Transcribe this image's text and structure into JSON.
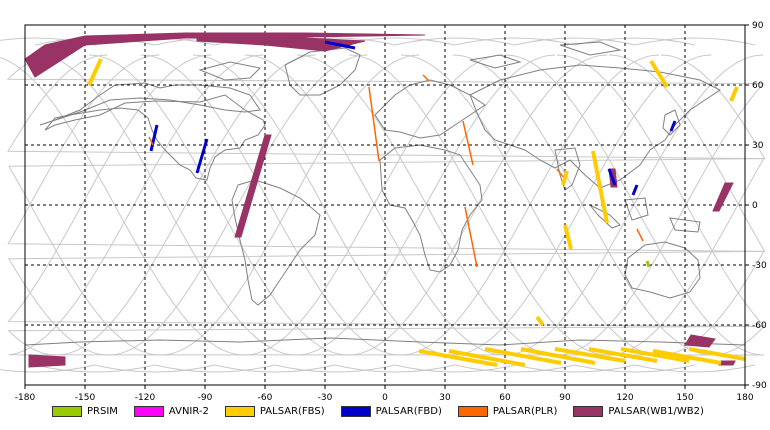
{
  "map": {
    "lon_range": [
      -180,
      180
    ],
    "lat_range": [
      -90,
      90
    ],
    "x_ticks": [
      -180,
      -150,
      -120,
      -90,
      -60,
      -30,
      0,
      30,
      60,
      90,
      120,
      150,
      180
    ],
    "y_ticks": [
      90,
      60,
      30,
      0,
      -30,
      -60,
      -90
    ],
    "x_tick_labels": [
      "-180",
      "-150",
      "-120",
      "-90",
      "-60",
      "-30",
      "0",
      "30",
      "60",
      "90",
      "120",
      "150",
      "180"
    ],
    "y_tick_labels": [
      "90",
      "60",
      "30",
      "0",
      "-30",
      "-60",
      "-90"
    ],
    "grid": "dashed",
    "land_color": "#808080",
    "orbit_color": "#c8c8c8"
  },
  "legend": [
    {
      "label": "PRSIM",
      "color": "#99cc00"
    },
    {
      "label": "AVNIR-2",
      "color": "#ff00ff"
    },
    {
      "label": "PALSAR(FBS)",
      "color": "#ffcc00"
    },
    {
      "label": "PALSAR(FBD)",
      "color": "#0000cc"
    },
    {
      "label": "PALSAR(PLR)",
      "color": "#ff6600"
    },
    {
      "label": "PALSAR(WB1/WB2)",
      "color": "#993366"
    }
  ],
  "swaths": {
    "wb": [
      {
        "poly": [
          [
            -180,
            73
          ],
          [
            -170,
            80
          ],
          [
            -150,
            84.5
          ],
          [
            -100,
            86
          ],
          [
            -40,
            86
          ],
          [
            20,
            85
          ],
          [
            -40,
            84
          ],
          [
            -100,
            83.5
          ],
          [
            -150,
            80
          ],
          [
            -175,
            64
          ]
        ]
      },
      {
        "poly": [
          [
            -94,
            84
          ],
          [
            -50,
            84
          ],
          [
            -10,
            82
          ],
          [
            -30,
            77
          ],
          [
            -60,
            80
          ],
          [
            -94,
            82
          ]
        ]
      },
      {
        "poly": [
          [
            -60,
            35
          ],
          [
            -57,
            35
          ],
          [
            -72,
            -16
          ],
          [
            -75,
            -16
          ]
        ]
      },
      {
        "poly": [
          [
            -178,
            -75
          ],
          [
            -160,
            -76
          ],
          [
            -160,
            -80
          ],
          [
            -178,
            -81
          ]
        ]
      },
      {
        "poly": [
          [
            112,
            18
          ],
          [
            115,
            18
          ],
          [
            116,
            9
          ],
          [
            113,
            9
          ]
        ]
      },
      {
        "poly": [
          [
            170,
            11
          ],
          [
            174,
            11
          ],
          [
            167,
            -3
          ],
          [
            164,
            -3
          ]
        ]
      },
      {
        "poly": [
          [
            153,
            -65
          ],
          [
            165,
            -67
          ],
          [
            162,
            -71
          ],
          [
            150,
            -70
          ]
        ]
      },
      {
        "poly": [
          [
            168,
            -78
          ],
          [
            175,
            -78
          ],
          [
            174,
            -80
          ],
          [
            167,
            -80
          ]
        ]
      }
    ],
    "fbd": [
      {
        "line": [
          [
            -30,
            81.5
          ],
          [
            -15,
            78.5
          ]
        ]
      },
      {
        "line": [
          [
            -94,
            16
          ],
          [
            -89,
            33
          ]
        ]
      },
      {
        "line": [
          [
            -117,
            27
          ],
          [
            -114,
            40
          ]
        ]
      },
      {
        "line": [
          [
            143,
            37
          ],
          [
            145,
            42
          ]
        ]
      },
      {
        "line": [
          [
            112,
            18
          ],
          [
            115,
            10
          ]
        ]
      },
      {
        "line": [
          [
            124,
            5
          ],
          [
            126,
            10
          ]
        ]
      }
    ],
    "fbs": [
      {
        "line": [
          [
            -148,
            60
          ],
          [
            -142,
            73
          ]
        ]
      },
      {
        "line": [
          [
            133,
            72
          ],
          [
            141,
            59
          ]
        ]
      },
      {
        "line": [
          [
            176,
            59
          ],
          [
            173,
            52
          ]
        ]
      },
      {
        "line": [
          [
            104,
            27
          ],
          [
            111,
            -9
          ]
        ]
      },
      {
        "line": [
          [
            91,
            17
          ],
          [
            89,
            10
          ]
        ]
      },
      {
        "line": [
          [
            93,
            -22
          ],
          [
            90,
            -10
          ]
        ]
      },
      {
        "line": [
          [
            76,
            -56
          ],
          [
            79,
            -60
          ]
        ]
      },
      {
        "line": [
          [
            17,
            -73
          ],
          [
            56,
            -80
          ]
        ]
      },
      {
        "line": [
          [
            32,
            -73
          ],
          [
            70,
            -80
          ]
        ]
      },
      {
        "line": [
          [
            50,
            -72
          ],
          [
            88,
            -79
          ]
        ]
      },
      {
        "line": [
          [
            68,
            -72
          ],
          [
            105,
            -79
          ]
        ]
      },
      {
        "line": [
          [
            85,
            -72
          ],
          [
            120,
            -78
          ]
        ]
      },
      {
        "line": [
          [
            102,
            -72
          ],
          [
            136,
            -78
          ]
        ]
      },
      {
        "line": [
          [
            118,
            -72
          ],
          [
            152,
            -78
          ]
        ]
      },
      {
        "line": [
          [
            134,
            -73
          ],
          [
            168,
            -79
          ]
        ]
      },
      {
        "line": [
          [
            152,
            -72
          ],
          [
            180,
            -77
          ]
        ]
      }
    ],
    "plr": [
      {
        "line": [
          [
            -8,
            59
          ],
          [
            -3,
            22
          ]
        ]
      },
      {
        "line": [
          [
            39,
            42
          ],
          [
            44,
            20
          ]
        ]
      },
      {
        "line": [
          [
            19,
            65
          ],
          [
            22,
            62
          ]
        ]
      },
      {
        "line": [
          [
            86,
            18
          ],
          [
            89,
            14
          ]
        ]
      },
      {
        "line": [
          [
            40,
            -1
          ],
          [
            46,
            -31
          ]
        ]
      },
      {
        "line": [
          [
            -118,
            34
          ],
          [
            -116,
            30
          ]
        ]
      },
      {
        "line": [
          [
            126,
            -12
          ],
          [
            129,
            -18
          ]
        ]
      }
    ],
    "prism": [
      {
        "line": [
          [
            131,
            -28
          ],
          [
            132,
            -31
          ]
        ]
      }
    ]
  }
}
